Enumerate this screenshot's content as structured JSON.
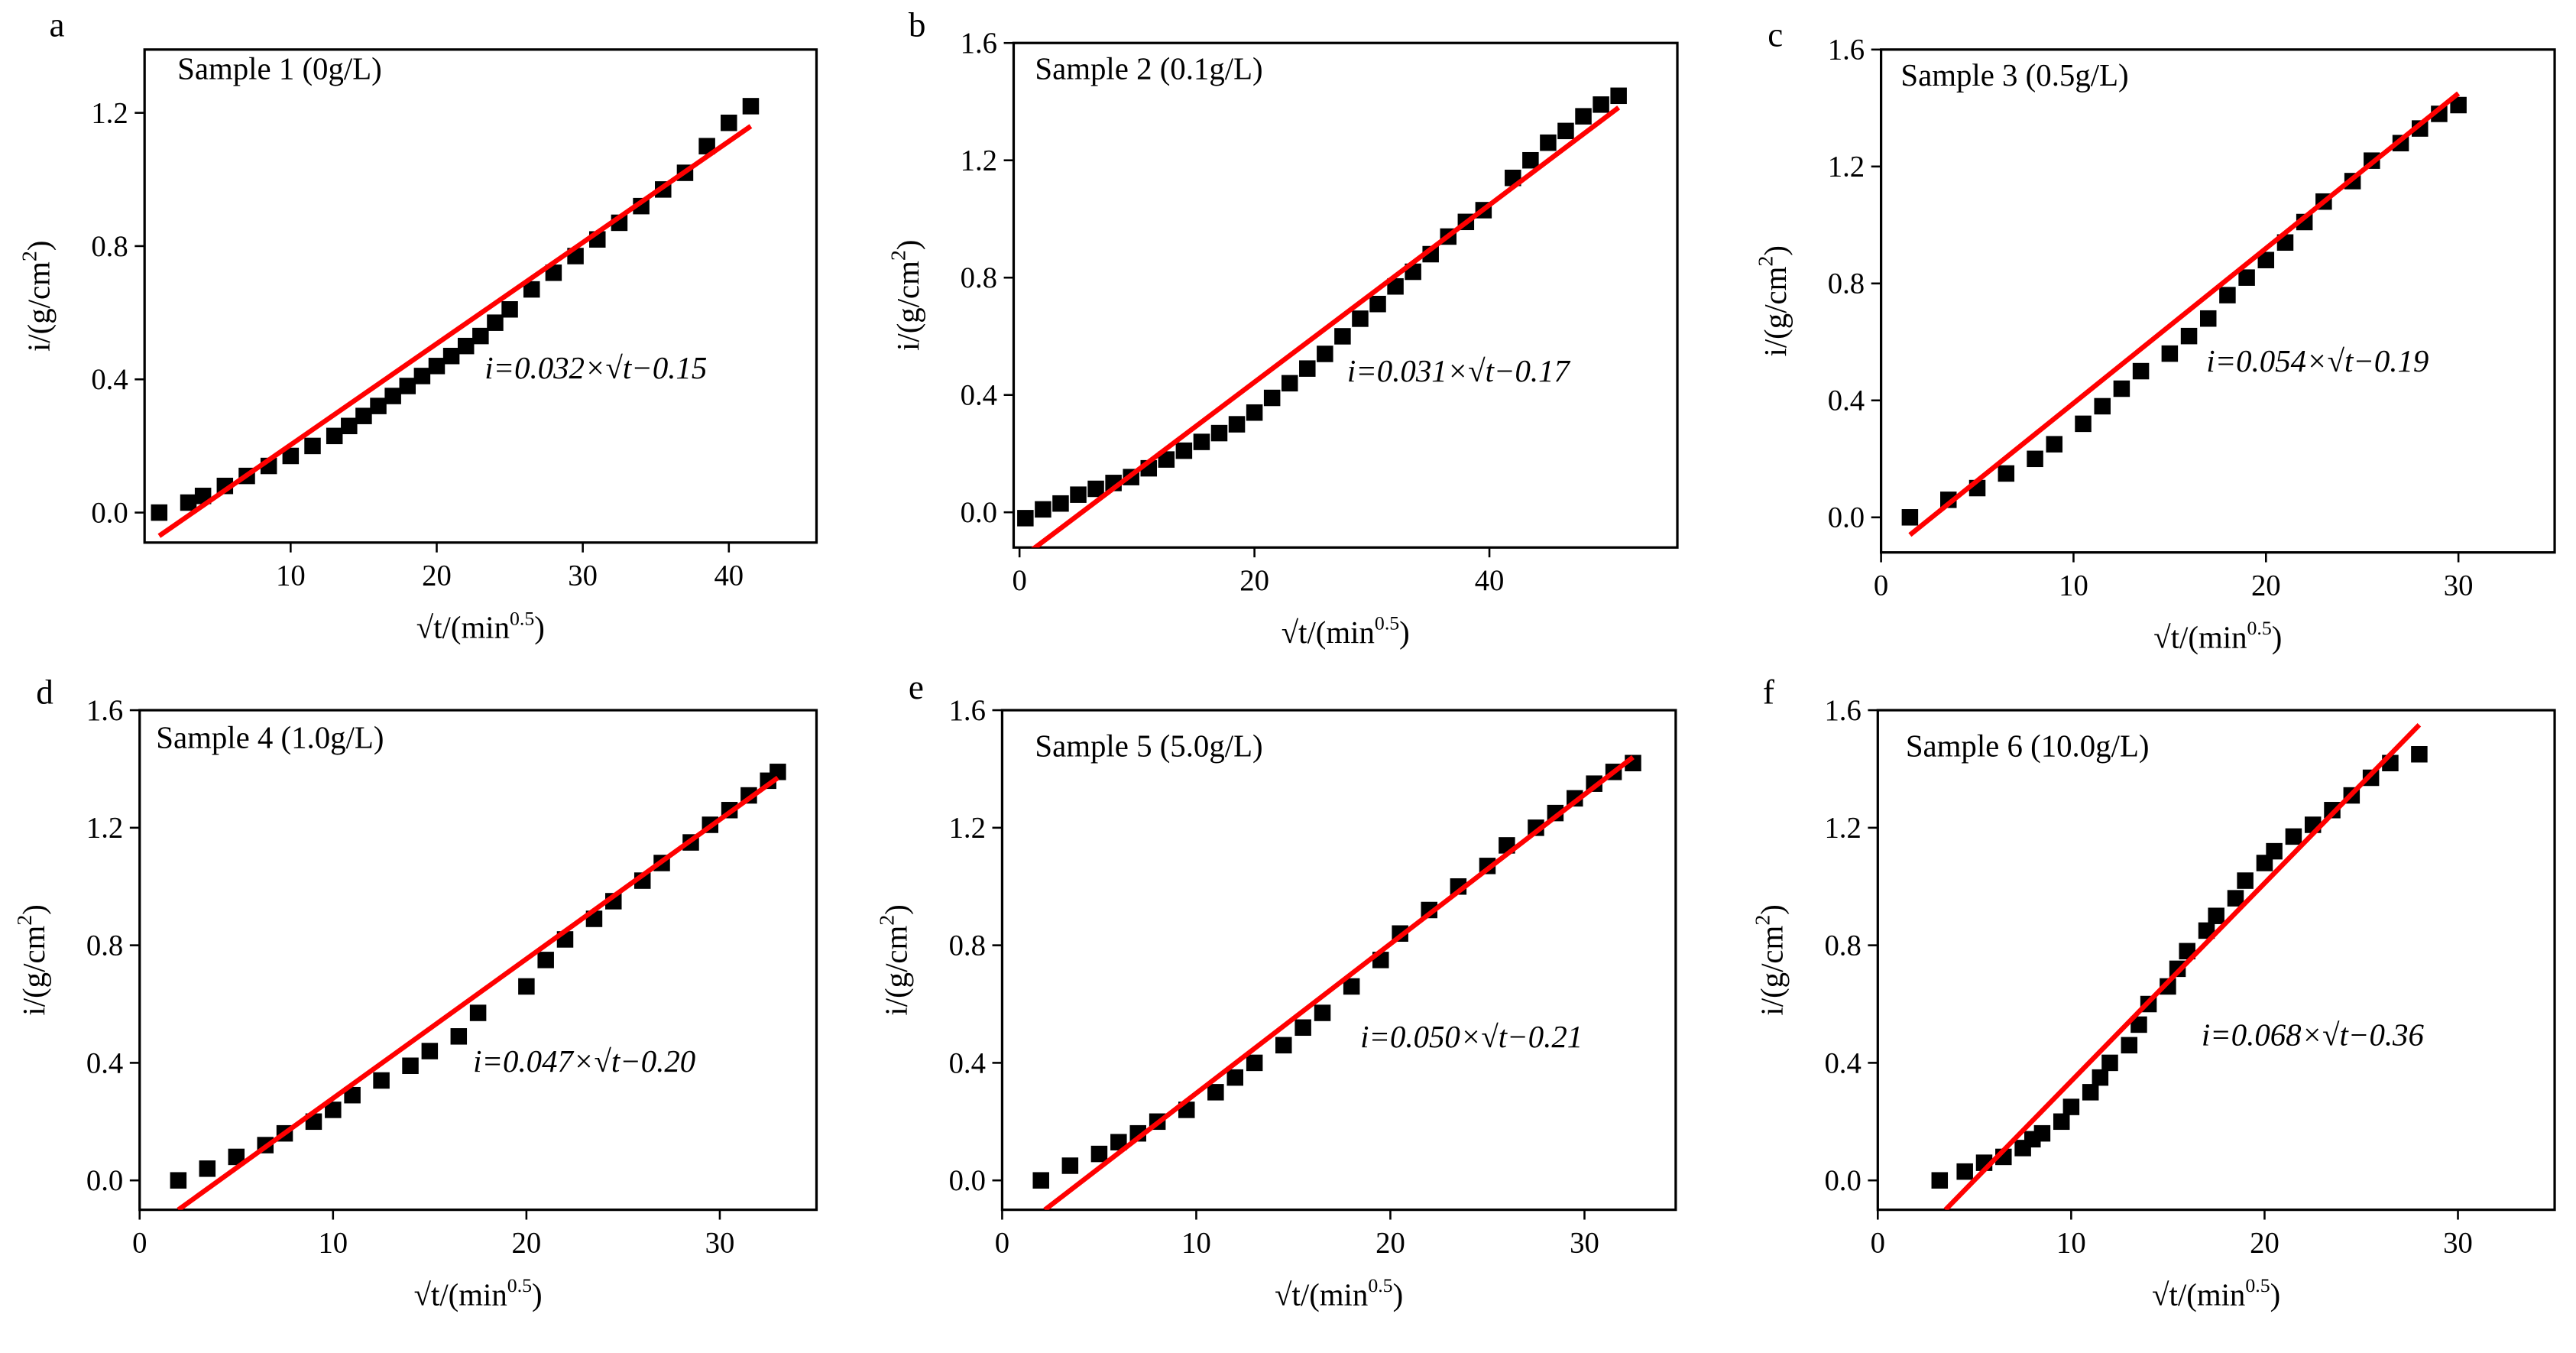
{
  "chart_data": [
    {
      "type": "scatter",
      "panel": "a",
      "annotations": [
        "Sample 1 (0g/L)",
        "i=0.032×√t−0.15"
      ],
      "xlabel": [
        "√t/(min",
        "0.5",
        ")"
      ],
      "ylabel": [
        "i/(g/cm",
        "2",
        ")"
      ],
      "xlim": [
        0,
        46
      ],
      "xticks": [
        10,
        20,
        30,
        40
      ],
      "ylim": [
        -0.09,
        1.39
      ],
      "yticks": [
        {
          "value": 0,
          "label": "0.0"
        },
        0.4,
        0.8,
        1.2
      ],
      "series": [
        {
          "type": "scatter",
          "color": "#000000",
          "x": [
            1,
            3,
            4,
            5.5,
            7,
            8.5,
            10,
            11.5,
            13,
            14,
            15,
            16,
            17,
            18,
            19,
            20,
            21,
            22,
            23,
            24,
            25,
            26.5,
            28,
            29.5,
            31,
            32.5,
            34,
            35.5,
            37,
            38.5,
            40,
            41.5
          ],
          "values": [
            0,
            0.03,
            0.05,
            0.08,
            0.11,
            0.14,
            0.17,
            0.2,
            0.23,
            0.26,
            0.29,
            0.32,
            0.35,
            0.38,
            0.41,
            0.44,
            0.47,
            0.5,
            0.53,
            0.57,
            0.61,
            0.67,
            0.72,
            0.77,
            0.82,
            0.87,
            0.92,
            0.97,
            1.02,
            1.1,
            1.17,
            1.22
          ]
        },
        {
          "type": "line",
          "color": "#ff0000",
          "x": [
            1,
            41.5
          ],
          "values": [
            -0.07,
            1.16
          ]
        }
      ]
    },
    {
      "type": "scatter",
      "panel": "b",
      "annotations": [
        "Sample 2 (0.1g/L)",
        "i=0.031×√t−0.17"
      ],
      "xlabel": [
        "√t/(min",
        "0.5",
        ")"
      ],
      "ylabel": [
        "i/(g/cm",
        "2",
        ")"
      ],
      "xlim": [
        -0.5,
        56
      ],
      "xticks": [
        0,
        20,
        40
      ],
      "ylim": [
        -0.12,
        1.6
      ],
      "yticks": [
        {
          "value": 0,
          "label": "0.0"
        },
        0.4,
        0.8,
        1.2,
        1.6
      ],
      "series": [
        {
          "type": "scatter",
          "color": "#000000",
          "x": [
            0.5,
            2,
            3.5,
            5,
            6.5,
            8,
            9.5,
            11,
            12.5,
            14,
            15.5,
            17,
            18.5,
            20,
            21.5,
            23,
            24.5,
            26,
            27.5,
            29,
            30.5,
            32,
            33.5,
            35,
            36.5,
            38,
            39.5,
            42,
            43.5,
            45,
            46.5,
            48,
            49.5,
            51
          ],
          "values": [
            -0.02,
            0.01,
            0.03,
            0.06,
            0.08,
            0.1,
            0.12,
            0.15,
            0.18,
            0.21,
            0.24,
            0.27,
            0.3,
            0.34,
            0.39,
            0.44,
            0.49,
            0.54,
            0.6,
            0.66,
            0.71,
            0.77,
            0.82,
            0.88,
            0.94,
            0.99,
            1.03,
            1.14,
            1.2,
            1.26,
            1.3,
            1.35,
            1.39,
            1.42
          ]
        },
        {
          "type": "line",
          "color": "#ff0000",
          "x": [
            1,
            51
          ],
          "values": [
            -0.13,
            1.38
          ]
        }
      ]
    },
    {
      "type": "scatter",
      "panel": "c",
      "annotations": [
        "Sample 3 (0.5g/L)",
        "i=0.054×√t−0.19"
      ],
      "xlabel": [
        "√t/(min",
        "0.5",
        ")"
      ],
      "ylabel": [
        "i/(g/cm",
        "2",
        ")"
      ],
      "xlim": [
        0,
        35
      ],
      "xticks": [
        0,
        10,
        20,
        30
      ],
      "ylim": [
        -0.12,
        1.6
      ],
      "yticks": [
        {
          "value": 0,
          "label": "0.0"
        },
        0.4,
        0.8,
        1.2,
        1.6
      ],
      "series": [
        {
          "type": "scatter",
          "color": "#000000",
          "x": [
            1.5,
            3.5,
            5,
            6.5,
            8,
            9,
            10.5,
            11.5,
            12.5,
            13.5,
            15,
            16,
            17,
            18,
            19,
            20,
            21,
            22,
            23,
            24.5,
            25.5,
            27,
            28,
            29,
            30
          ],
          "values": [
            0,
            0.06,
            0.1,
            0.15,
            0.2,
            0.25,
            0.32,
            0.38,
            0.44,
            0.5,
            0.56,
            0.62,
            0.68,
            0.76,
            0.82,
            0.88,
            0.94,
            1.01,
            1.08,
            1.15,
            1.22,
            1.28,
            1.33,
            1.38,
            1.41
          ]
        },
        {
          "type": "line",
          "color": "#ff0000",
          "x": [
            1.5,
            30
          ],
          "values": [
            -0.06,
            1.45
          ]
        }
      ]
    },
    {
      "type": "scatter",
      "panel": "d",
      "annotations": [
        "Sample 4 (1.0g/L)",
        "i=0.047×√t−0.20"
      ],
      "xlabel": [
        "√t/(min",
        "0.5",
        ")"
      ],
      "ylabel": [
        "i/(g/cm",
        "2",
        ")"
      ],
      "xlim": [
        0,
        35
      ],
      "xticks": [
        0,
        10,
        20,
        30
      ],
      "ylim": [
        -0.1,
        1.6
      ],
      "yticks": [
        {
          "value": 0,
          "label": "0.0"
        },
        0.4,
        0.8,
        1.2,
        1.6
      ],
      "series": [
        {
          "type": "scatter",
          "color": "#000000",
          "x": [
            2,
            3.5,
            5,
            6.5,
            7.5,
            9,
            10,
            11,
            12.5,
            14,
            15,
            16.5,
            17.5,
            20,
            21,
            22,
            23.5,
            24.5,
            26,
            27,
            28.5,
            29.5,
            30.5,
            31.5,
            32.5,
            33
          ],
          "values": [
            0,
            0.04,
            0.08,
            0.12,
            0.16,
            0.2,
            0.24,
            0.29,
            0.34,
            0.39,
            0.44,
            0.49,
            0.57,
            0.66,
            0.75,
            0.82,
            0.89,
            0.95,
            1.02,
            1.08,
            1.15,
            1.21,
            1.26,
            1.31,
            1.36,
            1.39
          ]
        },
        {
          "type": "line",
          "color": "#ff0000",
          "x": [
            2,
            33
          ],
          "values": [
            -0.1,
            1.37
          ]
        }
      ]
    },
    {
      "type": "scatter",
      "panel": "e",
      "annotations": [
        "Sample 5 (5.0g/L)",
        "i=0.050×√t−0.21"
      ],
      "xlabel": [
        "√t/(min",
        "0.5",
        ")"
      ],
      "ylabel": [
        "i/(g/cm",
        "2",
        ")"
      ],
      "xlim": [
        0,
        34.7
      ],
      "xticks": [
        0,
        10,
        20,
        30
      ],
      "ylim": [
        -0.1,
        1.6
      ],
      "yticks": [
        {
          "value": 0,
          "label": "0.0"
        },
        0.4,
        0.8,
        1.2,
        1.6
      ],
      "series": [
        {
          "type": "scatter",
          "color": "#000000",
          "x": [
            2,
            3.5,
            5,
            6,
            7,
            8,
            9.5,
            11,
            12,
            13,
            14.5,
            15.5,
            16.5,
            18,
            19.5,
            20.5,
            22,
            23.5,
            25,
            26,
            27.5,
            28.5,
            29.5,
            30.5,
            31.5,
            32.5
          ],
          "values": [
            0,
            0.05,
            0.09,
            0.13,
            0.16,
            0.2,
            0.24,
            0.3,
            0.35,
            0.4,
            0.46,
            0.52,
            0.57,
            0.66,
            0.75,
            0.84,
            0.92,
            1.0,
            1.07,
            1.14,
            1.2,
            1.25,
            1.3,
            1.35,
            1.39,
            1.42
          ]
        },
        {
          "type": "line",
          "color": "#ff0000",
          "x": [
            2.2,
            32.5
          ],
          "values": [
            -0.1,
            1.44
          ]
        }
      ]
    },
    {
      "type": "scatter",
      "panel": "f",
      "annotations": [
        "Sample 6 (10.0g/L)",
        "i=0.068×√t−0.36"
      ],
      "xlabel": [
        "√t/(min",
        "0.5",
        ")"
      ],
      "ylabel": [
        "i/(g/cm",
        "2",
        ")"
      ],
      "xlim": [
        0,
        35
      ],
      "xticks": [
        0,
        10,
        20,
        30
      ],
      "ylim": [
        -0.1,
        1.6
      ],
      "yticks": [
        {
          "value": 0,
          "label": "0.0"
        },
        0.4,
        0.8,
        1.2,
        1.6
      ],
      "series": [
        {
          "type": "scatter",
          "color": "#000000",
          "x": [
            3.2,
            4.5,
            5.5,
            6.5,
            7.5,
            8,
            8.5,
            9.5,
            10,
            11,
            11.5,
            12,
            13,
            13.5,
            14,
            15,
            15.5,
            16,
            17,
            17.5,
            18.5,
            19,
            20,
            20.5,
            21.5,
            22.5,
            23.5,
            24.5,
            25.5,
            26.5,
            28
          ],
          "values": [
            0,
            0.03,
            0.06,
            0.08,
            0.11,
            0.14,
            0.16,
            0.2,
            0.25,
            0.3,
            0.35,
            0.4,
            0.46,
            0.53,
            0.6,
            0.66,
            0.72,
            0.78,
            0.85,
            0.9,
            0.96,
            1.02,
            1.08,
            1.12,
            1.17,
            1.21,
            1.26,
            1.31,
            1.37,
            1.42,
            1.45
          ]
        },
        {
          "type": "line",
          "color": "#ff0000",
          "x": [
            3.5,
            28
          ],
          "values": [
            -0.1,
            1.55
          ]
        }
      ]
    }
  ]
}
